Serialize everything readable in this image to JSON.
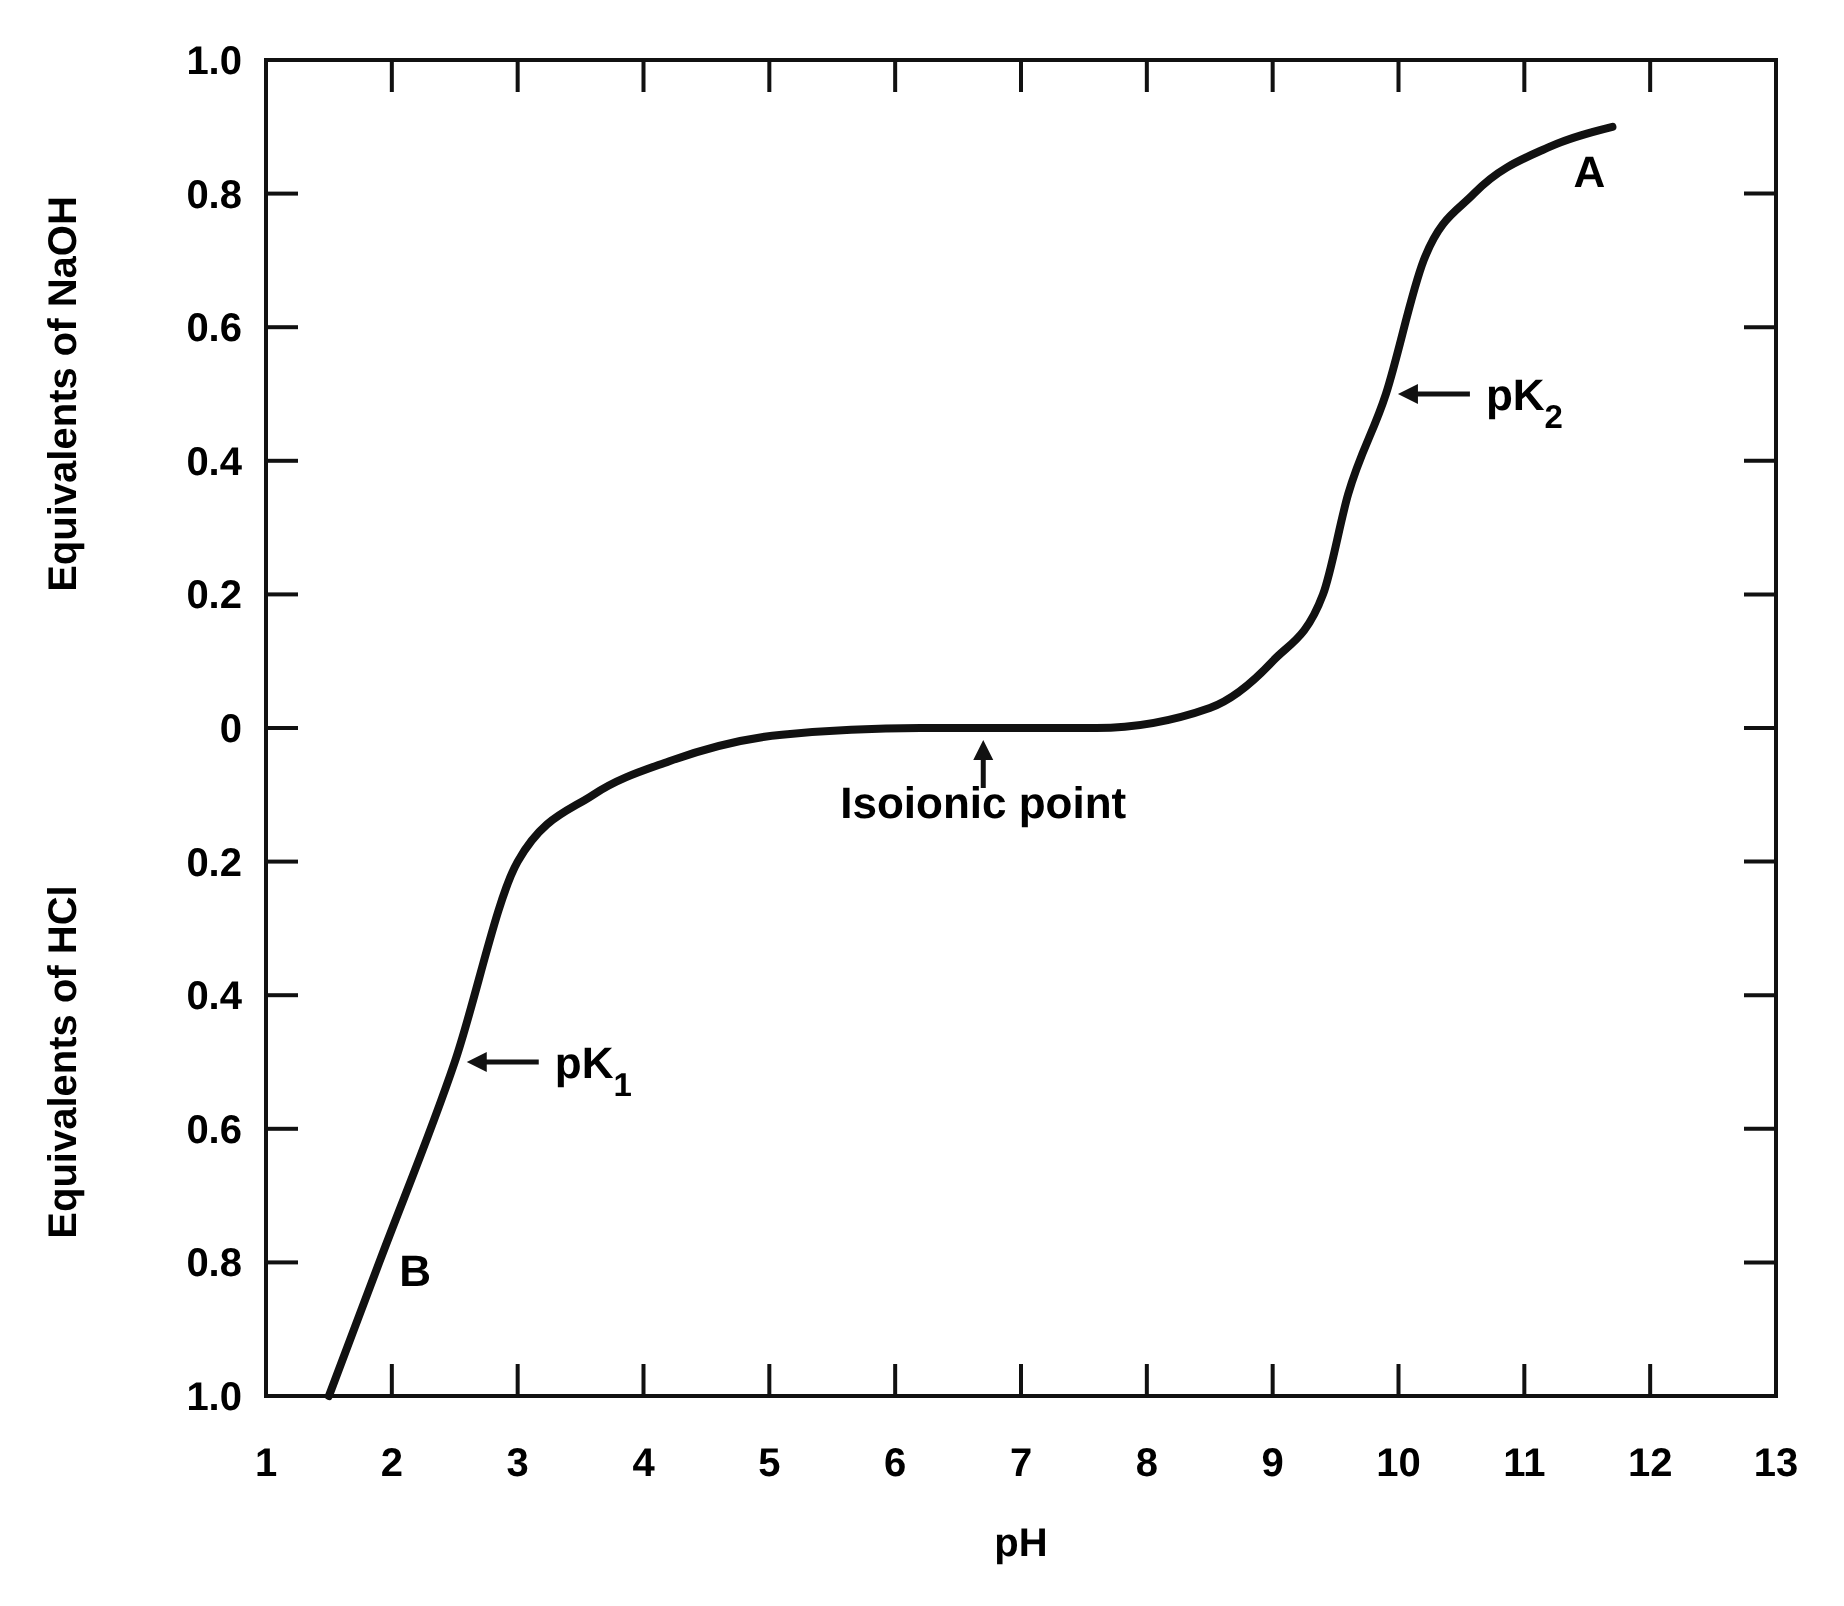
{
  "chart_data": {
    "type": "line",
    "xlabel": "pH",
    "ylabel": "Equivalents of NaOH",
    "xlim": [
      1,
      13
    ],
    "xticks": [
      1,
      2,
      3,
      4,
      5,
      6,
      7,
      8,
      9,
      10,
      11,
      12,
      13
    ],
    "ylim": [
      -1,
      1
    ],
    "yticks": [
      {
        "value": 1,
        "label": "1.0"
      },
      {
        "value": 0.8,
        "label": "0.8"
      },
      {
        "value": 0.6,
        "label": "0.6"
      },
      {
        "value": 0.4,
        "label": "0.4"
      },
      {
        "value": 0.2,
        "label": "0.2"
      },
      {
        "value": 0,
        "label": "0"
      },
      {
        "value": -0.2,
        "label": "0.2"
      },
      {
        "value": -0.4,
        "label": "0.4"
      },
      {
        "value": -0.6,
        "label": "0.6"
      },
      {
        "value": -0.8,
        "label": "0.8"
      },
      {
        "value": -1,
        "label": "1.0"
      }
    ],
    "grid": false,
    "marker": "none",
    "line_style": "solid",
    "series": [
      {
        "color": "#111111",
        "x": [
          1.5,
          1.9,
          2.5,
          3.0,
          3.6,
          4.2,
          5.1,
          6.2,
          7.6,
          8.5,
          9.0,
          9.4,
          9.6,
          9.9,
          10.2,
          10.6,
          11.2,
          11.7
        ],
        "values": [
          -1.0,
          -0.8,
          -0.5,
          -0.2,
          -0.1,
          -0.05,
          -0.01,
          0,
          0,
          0.03,
          0.1,
          0.2,
          0.35,
          0.5,
          0.7,
          0.8,
          0.87,
          0.9
        ]
      }
    ],
    "annotations": [
      {
        "text": "A",
        "x": 11.2,
        "y": 0.87
      },
      {
        "text": "B",
        "x": 1.9,
        "y": -0.8
      },
      {
        "text": "pK$_{2}$",
        "x": 9.9,
        "y": 0.5
      },
      {
        "text": "pK$_{1}$",
        "x": 2.5,
        "y": -0.5
      },
      {
        "text": "Isoionic point",
        "x": 6.7,
        "y": 0
      },
      "Equivalents of HCl"
    ]
  }
}
